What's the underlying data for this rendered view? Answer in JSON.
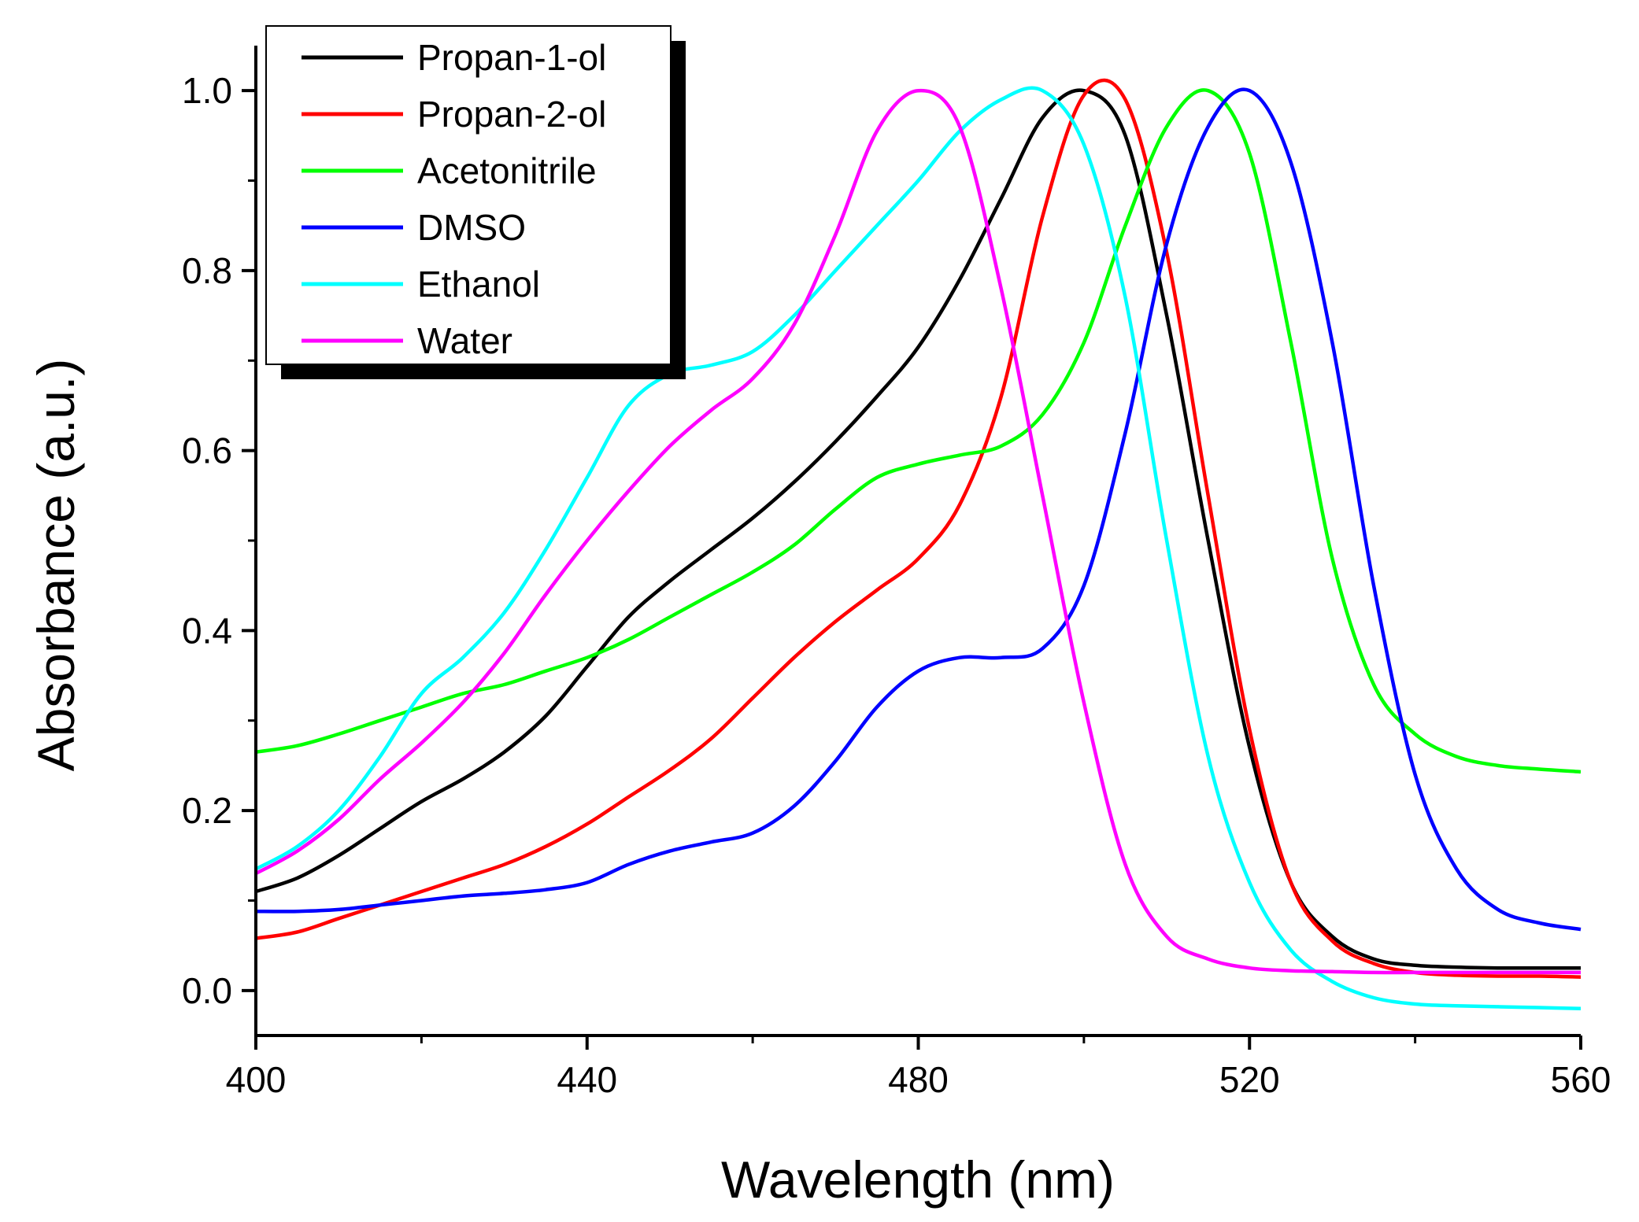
{
  "chart_data": {
    "type": "line",
    "title": "",
    "xlabel": "Wavelength (nm)",
    "ylabel": "Absorbance (a.u.)",
    "xlim": [
      400,
      560
    ],
    "ylim": [
      -0.05,
      1.05
    ],
    "xticks": [
      400,
      440,
      480,
      520,
      560
    ],
    "xtick_labels": [
      "400",
      "440",
      "480",
      "520",
      "560"
    ],
    "yticks": [
      0.0,
      0.2,
      0.4,
      0.6,
      0.8,
      1.0
    ],
    "ytick_labels": [
      "0.0",
      "0.2",
      "0.4",
      "0.6",
      "0.8",
      "1.0"
    ],
    "legend_position": "top-left",
    "grid": false,
    "series": [
      {
        "name": "Propan-1-ol",
        "color": "#000000",
        "x": [
          400,
          405,
          410,
          415,
          420,
          425,
          430,
          435,
          440,
          445,
          450,
          455,
          460,
          465,
          470,
          475,
          480,
          485,
          490,
          495,
          500,
          505,
          510,
          515,
          520,
          525,
          530,
          535,
          540,
          545,
          550,
          555,
          560
        ],
        "y": [
          0.11,
          0.125,
          0.15,
          0.18,
          0.21,
          0.235,
          0.265,
          0.305,
          0.36,
          0.415,
          0.455,
          0.49,
          0.525,
          0.565,
          0.61,
          0.66,
          0.715,
          0.79,
          0.88,
          0.97,
          1.0,
          0.95,
          0.75,
          0.5,
          0.27,
          0.12,
          0.06,
          0.035,
          0.028,
          0.026,
          0.025,
          0.025,
          0.025
        ]
      },
      {
        "name": "Propan-2-ol",
        "color": "#ff0000",
        "x": [
          400,
          405,
          410,
          415,
          420,
          425,
          430,
          435,
          440,
          445,
          450,
          455,
          460,
          465,
          470,
          475,
          480,
          485,
          490,
          495,
          500,
          505,
          510,
          515,
          520,
          525,
          530,
          535,
          540,
          545,
          550,
          555,
          560
        ],
        "y": [
          0.058,
          0.065,
          0.08,
          0.095,
          0.11,
          0.125,
          0.14,
          0.16,
          0.185,
          0.215,
          0.245,
          0.28,
          0.325,
          0.37,
          0.41,
          0.445,
          0.48,
          0.54,
          0.66,
          0.86,
          0.995,
          0.99,
          0.82,
          0.55,
          0.29,
          0.12,
          0.055,
          0.03,
          0.02,
          0.017,
          0.016,
          0.016,
          0.015
        ]
      },
      {
        "name": "Acetonitrile",
        "color": "#00ff00",
        "x": [
          400,
          405,
          410,
          415,
          420,
          425,
          430,
          435,
          440,
          445,
          450,
          455,
          460,
          465,
          470,
          475,
          480,
          485,
          490,
          495,
          500,
          505,
          510,
          515,
          520,
          525,
          530,
          535,
          540,
          545,
          550,
          555,
          560
        ],
        "y": [
          0.265,
          0.272,
          0.285,
          0.3,
          0.315,
          0.33,
          0.34,
          0.355,
          0.37,
          0.39,
          0.415,
          0.44,
          0.465,
          0.495,
          0.535,
          0.57,
          0.585,
          0.595,
          0.605,
          0.64,
          0.72,
          0.85,
          0.96,
          1.0,
          0.93,
          0.72,
          0.48,
          0.34,
          0.285,
          0.26,
          0.25,
          0.246,
          0.243
        ]
      },
      {
        "name": "DMSO",
        "color": "#0000ff",
        "x": [
          400,
          405,
          410,
          415,
          420,
          425,
          430,
          435,
          440,
          445,
          450,
          455,
          460,
          465,
          470,
          475,
          480,
          485,
          490,
          495,
          500,
          505,
          510,
          515,
          520,
          525,
          530,
          535,
          540,
          545,
          550,
          555,
          560
        ],
        "y": [
          0.088,
          0.088,
          0.09,
          0.095,
          0.1,
          0.105,
          0.108,
          0.112,
          0.12,
          0.14,
          0.155,
          0.165,
          0.175,
          0.205,
          0.255,
          0.315,
          0.355,
          0.37,
          0.37,
          0.38,
          0.45,
          0.62,
          0.83,
          0.96,
          1.0,
          0.92,
          0.72,
          0.45,
          0.24,
          0.135,
          0.09,
          0.075,
          0.068
        ]
      },
      {
        "name": "Ethanol",
        "color": "#00ffff",
        "x": [
          400,
          405,
          410,
          415,
          420,
          425,
          430,
          435,
          440,
          445,
          450,
          455,
          460,
          465,
          470,
          475,
          480,
          485,
          490,
          495,
          500,
          505,
          510,
          515,
          520,
          525,
          530,
          535,
          540,
          545,
          550,
          555,
          560
        ],
        "y": [
          0.135,
          0.16,
          0.2,
          0.26,
          0.33,
          0.37,
          0.42,
          0.49,
          0.57,
          0.65,
          0.685,
          0.695,
          0.71,
          0.75,
          0.8,
          0.85,
          0.9,
          0.955,
          0.99,
          1.0,
          0.94,
          0.77,
          0.5,
          0.26,
          0.12,
          0.045,
          0.01,
          -0.008,
          -0.015,
          -0.017,
          -0.018,
          -0.019,
          -0.02
        ]
      },
      {
        "name": "Water",
        "color": "#ff00ff",
        "x": [
          400,
          405,
          410,
          415,
          420,
          425,
          430,
          435,
          440,
          445,
          450,
          455,
          460,
          465,
          470,
          475,
          480,
          485,
          490,
          495,
          500,
          505,
          510,
          515,
          520,
          525,
          530,
          535,
          540,
          545,
          550,
          555,
          560
        ],
        "y": [
          0.13,
          0.155,
          0.19,
          0.235,
          0.275,
          0.32,
          0.375,
          0.44,
          0.5,
          0.555,
          0.605,
          0.645,
          0.68,
          0.74,
          0.84,
          0.955,
          1.0,
          0.96,
          0.78,
          0.55,
          0.32,
          0.14,
          0.06,
          0.035,
          0.025,
          0.022,
          0.021,
          0.02,
          0.02,
          0.02,
          0.02,
          0.02,
          0.02
        ]
      }
    ]
  }
}
